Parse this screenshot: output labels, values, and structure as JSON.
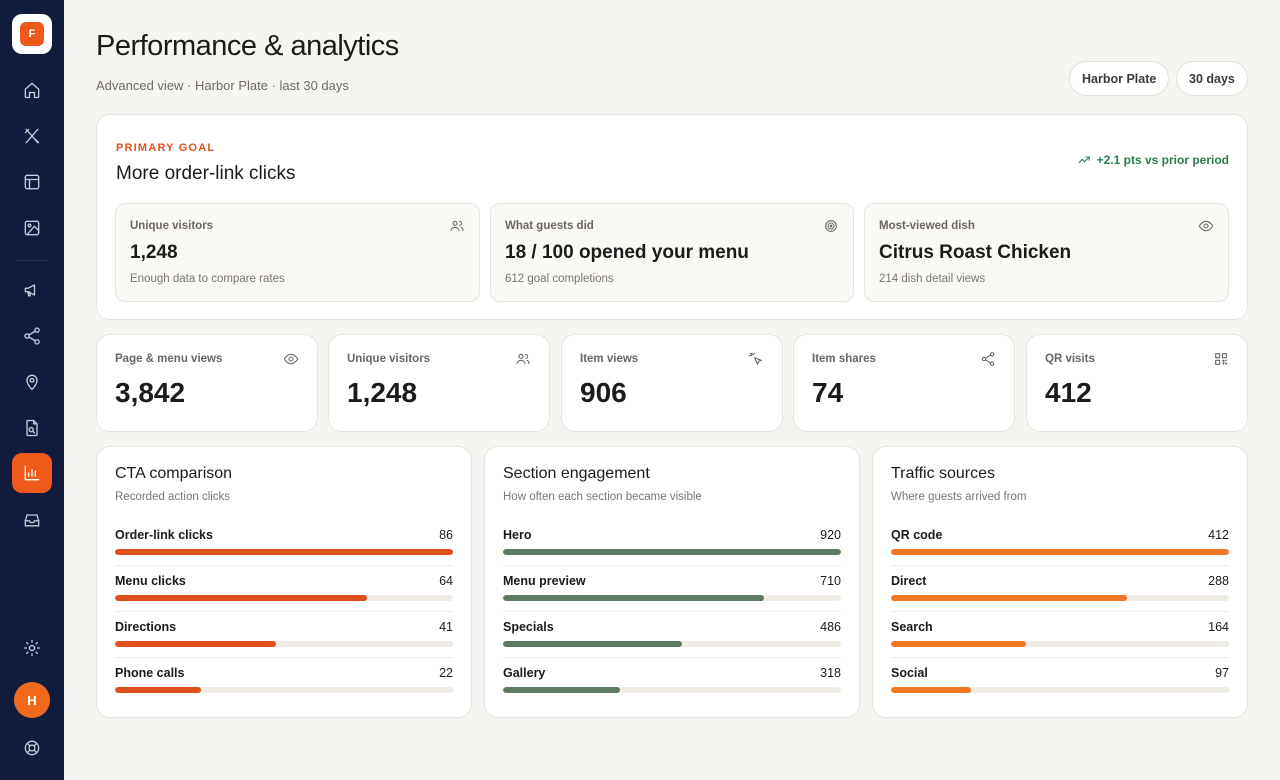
{
  "sidebar": {
    "logo_letter": "F",
    "avatar_initial": "H",
    "items": [
      {
        "icon": "home-icon"
      },
      {
        "icon": "utensils-icon"
      },
      {
        "icon": "layout-icon"
      },
      {
        "icon": "image-icon"
      },
      {
        "icon": "megaphone-icon"
      },
      {
        "icon": "share-icon"
      },
      {
        "icon": "map-pin-icon"
      },
      {
        "icon": "file-search-icon"
      },
      {
        "icon": "bar-chart-icon",
        "active": true
      },
      {
        "icon": "inbox-icon"
      },
      {
        "icon": "gear-icon"
      },
      {
        "icon": "life-buoy-icon"
      }
    ]
  },
  "header": {
    "title": "Performance & analytics",
    "subtitle": "Advanced view · Harbor Plate · last 30 days",
    "location_pill": "Harbor Plate",
    "range_pill": "30 days"
  },
  "goal": {
    "label": "PRIMARY GOAL",
    "title": "More order-link clicks",
    "delta": "+2.1 pts vs prior period",
    "boxes": [
      {
        "label": "Unique visitors",
        "value": "1,248",
        "note": "Enough data to compare rates",
        "icon": "users-icon"
      },
      {
        "label": "What guests did",
        "value": "18 / 100 opened your menu",
        "note": "612 goal completions",
        "icon": "target-icon"
      },
      {
        "label": "Most-viewed dish",
        "value": "Citrus Roast Chicken",
        "note": "214 dish detail views",
        "icon": "eye-icon"
      }
    ]
  },
  "stats": [
    {
      "label": "Page & menu views",
      "value": "3,842",
      "icon": "eye-icon"
    },
    {
      "label": "Unique visitors",
      "value": "1,248",
      "icon": "users-icon"
    },
    {
      "label": "Item views",
      "value": "906",
      "icon": "pointer-click-icon"
    },
    {
      "label": "Item shares",
      "value": "74",
      "icon": "share-icon"
    },
    {
      "label": "QR visits",
      "value": "412",
      "icon": "qr-code-icon"
    }
  ],
  "panels": [
    {
      "title": "CTA comparison",
      "subtitle": "Recorded action clicks",
      "color": "#e0501a",
      "max": 86,
      "rows": [
        {
          "label": "Order-link clicks",
          "value": 86
        },
        {
          "label": "Menu clicks",
          "value": 64
        },
        {
          "label": "Directions",
          "value": 41
        },
        {
          "label": "Phone calls",
          "value": 22
        }
      ]
    },
    {
      "title": "Section engagement",
      "subtitle": "How often each section became visible",
      "color": "#5f7a63",
      "max": 920,
      "rows": [
        {
          "label": "Hero",
          "value": 920
        },
        {
          "label": "Menu preview",
          "value": 710
        },
        {
          "label": "Specials",
          "value": 486
        },
        {
          "label": "Gallery",
          "value": 318
        }
      ]
    },
    {
      "title": "Traffic sources",
      "subtitle": "Where guests arrived from",
      "color": "#f07624",
      "max": 412,
      "rows": [
        {
          "label": "QR code",
          "value": 412
        },
        {
          "label": "Direct",
          "value": 288
        },
        {
          "label": "Search",
          "value": 164
        },
        {
          "label": "Social",
          "value": 97
        }
      ]
    }
  ]
}
